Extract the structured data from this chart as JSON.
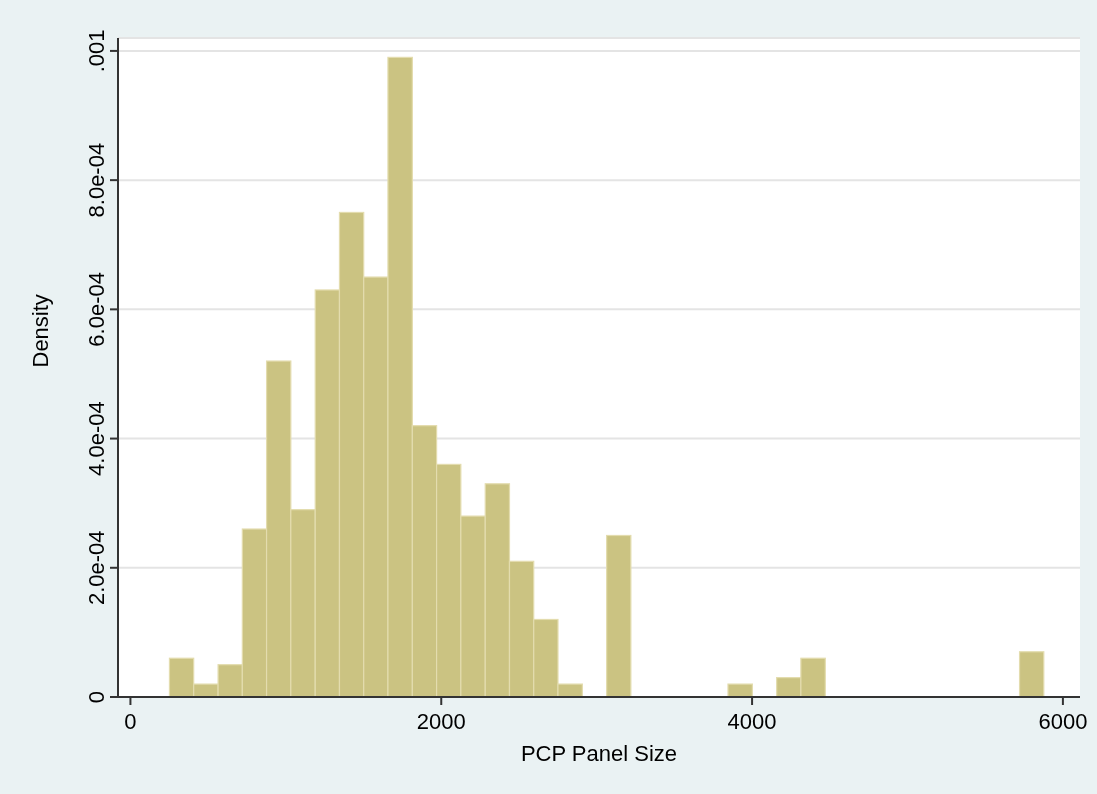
{
  "chart_data": {
    "type": "histogram",
    "xlabel": "PCP Panel Size",
    "ylabel": "Density",
    "color": "#cbc382",
    "bins": [
      251,
      407,
      564,
      720,
      876,
      1032,
      1189,
      1345,
      1501,
      1657,
      1814,
      1970,
      2126,
      2283,
      2439,
      2595,
      2751,
      2908,
      3064,
      3220,
      3377,
      3533,
      3689,
      3845,
      4002,
      4158,
      4314,
      4471,
      4627,
      4783,
      4939,
      5096,
      5252,
      5408,
      5564,
      5721,
      5877
    ],
    "values": [
      6e-05,
      2e-05,
      5e-05,
      0.00026,
      0.00052,
      0.00029,
      0.00063,
      0.00075,
      0.00065,
      0.00099,
      0.00042,
      0.00036,
      0.00028,
      0.00033,
      0.00021,
      0.00012,
      2e-05,
      0,
      0.00025,
      0,
      0,
      0,
      0,
      2e-05,
      0,
      3e-05,
      6e-05,
      0,
      0,
      0,
      0,
      0,
      0,
      0,
      0,
      7e-05
    ],
    "xlim": [
      -80,
      6110
    ],
    "xticks": [
      0,
      2000,
      4000,
      6000
    ],
    "ylim": [
      0,
      0.00102
    ],
    "yticks": [
      {
        "value": 0,
        "label": "0"
      },
      {
        "value": 0.0002,
        "label": "2.0e-04"
      },
      {
        "value": 0.0004,
        "label": "4.0e-04"
      },
      {
        "value": 0.0006,
        "label": "6.0e-04"
      },
      {
        "value": 0.0008,
        "label": "8.0e-04"
      },
      {
        "value": 0.001,
        "label": ".001"
      }
    ],
    "grid": "y"
  }
}
